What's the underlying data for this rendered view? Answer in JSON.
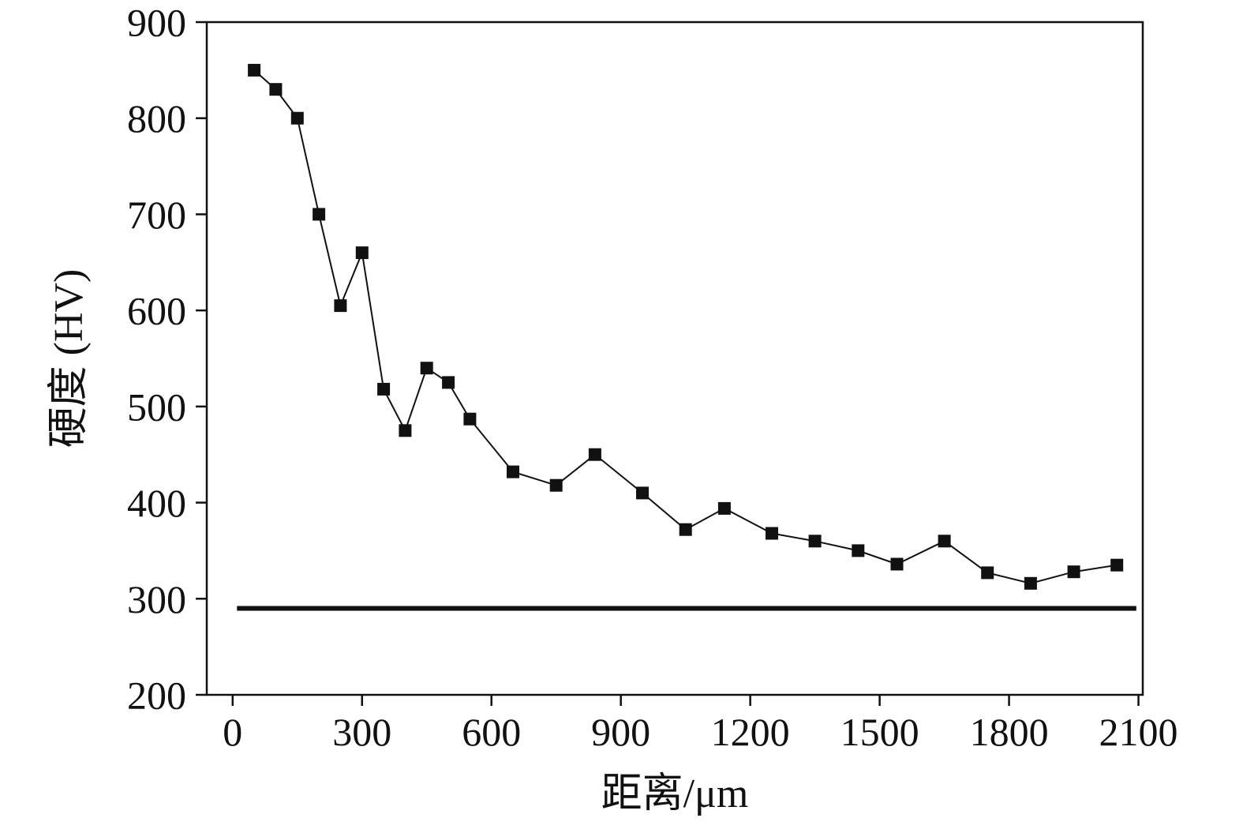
{
  "figure": {
    "background": "#ffffff",
    "line_color": "#111111",
    "marker_color": "#111111",
    "frame_color": "#111111"
  },
  "chart_data": {
    "type": "line",
    "title": "",
    "xlabel": "距离/μm",
    "ylabel": "硬度 (HV)",
    "xlim": [
      -60,
      2110
    ],
    "ylim": [
      200,
      900
    ],
    "x_ticks": [
      0,
      300,
      600,
      900,
      1200,
      1500,
      1800,
      2100
    ],
    "y_ticks": [
      200,
      300,
      400,
      500,
      600,
      700,
      800,
      900
    ],
    "grid": false,
    "legend": null,
    "series": [
      {
        "name": "hardness-profile",
        "marker": "square",
        "color": "#111111",
        "x": [
          50,
          100,
          150,
          200,
          250,
          300,
          350,
          400,
          450,
          500,
          550,
          650,
          750,
          840,
          950,
          1050,
          1140,
          1250,
          1350,
          1450,
          1540,
          1650,
          1750,
          1850,
          1950,
          2050
        ],
        "y": [
          850,
          830,
          800,
          700,
          605,
          660,
          518,
          475,
          540,
          525,
          487,
          432,
          418,
          450,
          410,
          372,
          394,
          368,
          360,
          350,
          336,
          360,
          327,
          316,
          328,
          335
        ]
      }
    ],
    "baseline": {
      "name": "substrate-hardness-line",
      "value": 290,
      "x_start": 10,
      "x_end": 2095,
      "color": "#111111"
    }
  }
}
